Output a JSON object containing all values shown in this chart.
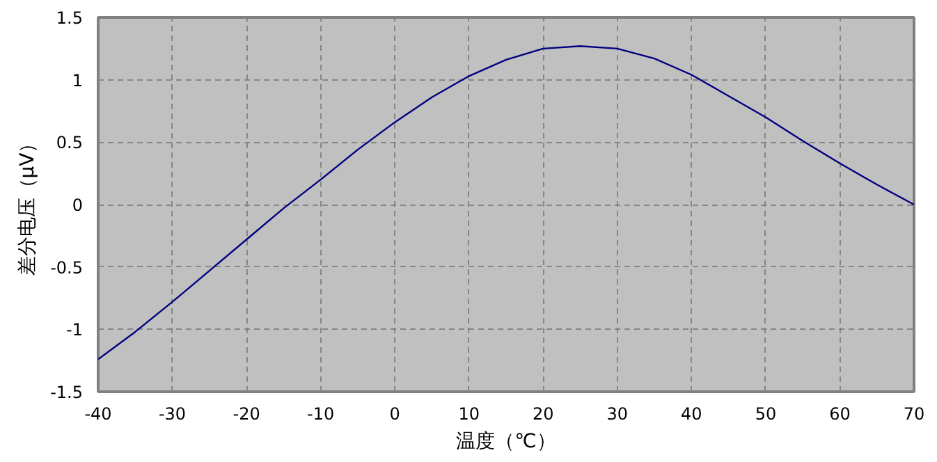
{
  "chart_data": {
    "type": "line",
    "xlabel": "温度（℃）",
    "ylabel": "差分电压（μV）",
    "x": [
      -40,
      -35,
      -30,
      -25,
      -20,
      -15,
      -10,
      -5,
      0,
      5,
      10,
      15,
      20,
      25,
      30,
      35,
      40,
      45,
      50,
      55,
      60,
      65,
      70
    ],
    "series": [
      {
        "color": "#000080",
        "values": [
          -1.24,
          -1.02,
          -0.78,
          -0.53,
          -0.28,
          -0.03,
          0.2,
          0.44,
          0.66,
          0.86,
          1.03,
          1.16,
          1.25,
          1.27,
          1.25,
          1.17,
          1.04,
          0.87,
          0.7,
          0.51,
          0.33,
          0.16,
          0.0
        ]
      }
    ],
    "xlim": [
      -40,
      70
    ],
    "ylim": [
      -1.5,
      1.5
    ],
    "xticks": [
      -40,
      -30,
      -20,
      -10,
      0,
      10,
      20,
      30,
      40,
      50,
      60,
      70
    ],
    "yticks": [
      -1.5,
      -1,
      -0.5,
      0,
      0.5,
      1,
      1.5
    ],
    "grid": true
  }
}
